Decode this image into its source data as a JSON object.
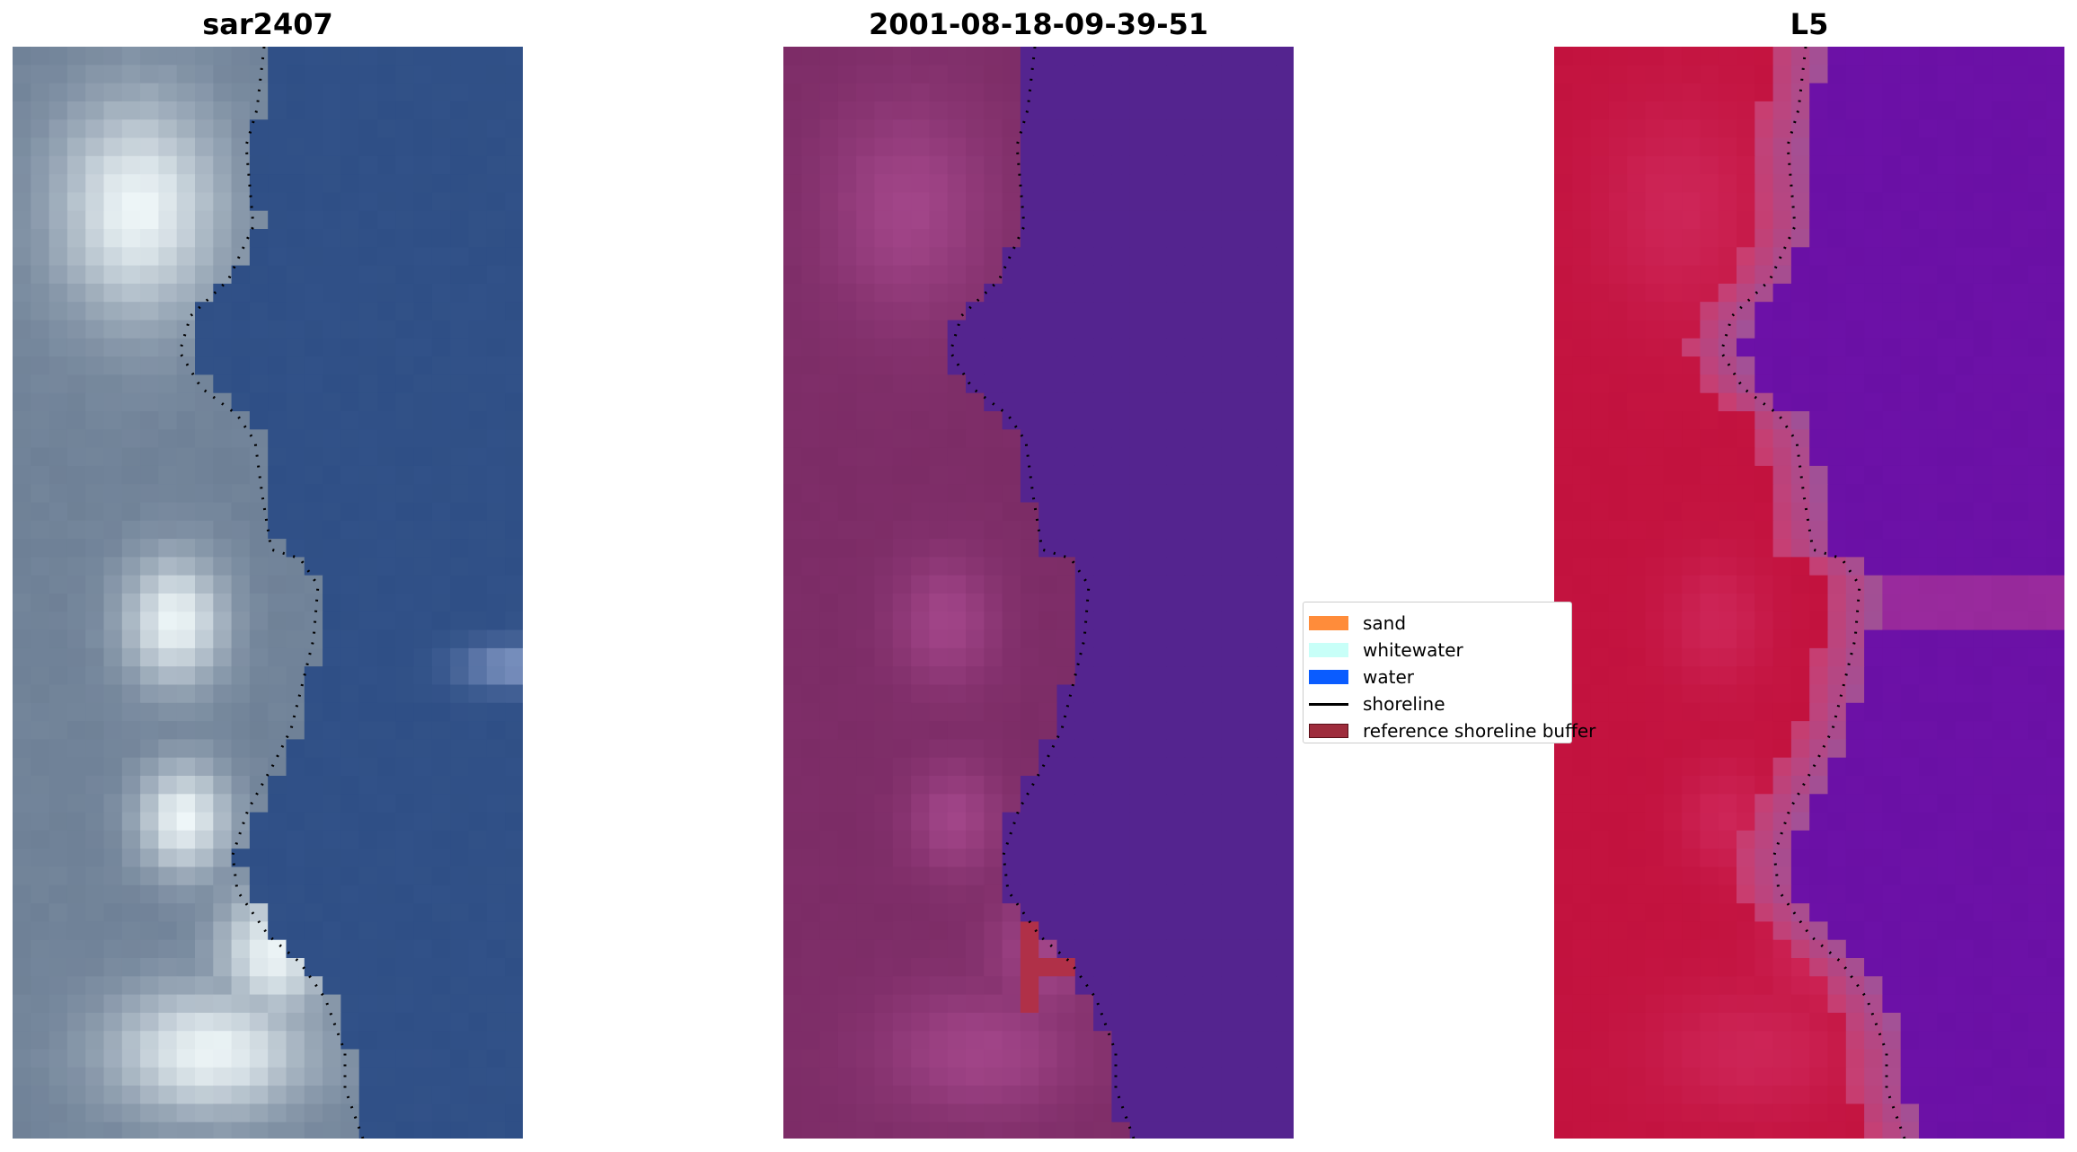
{
  "panels": [
    {
      "title": "sar2407",
      "style": "rgb"
    },
    {
      "title": "2001-08-18-09-39-51",
      "style": "classified"
    },
    {
      "title": "L5",
      "style": "index"
    }
  ],
  "legend": {
    "items": [
      {
        "label": "sand",
        "kind": "patch",
        "color": "#ff8c3a"
      },
      {
        "label": "whitewater",
        "kind": "patch",
        "color": "#c8fff8"
      },
      {
        "label": "water",
        "kind": "patch",
        "color": "#0a5cff"
      },
      {
        "label": "shoreline",
        "kind": "line",
        "color": "#000000"
      },
      {
        "label": "reference shoreline buffer",
        "kind": "patch",
        "color": "#9e2c3c"
      }
    ]
  },
  "colors": {
    "rgb_water": "#2f4f86",
    "rgb_land": "#6f829b",
    "classified_water": "#54248f",
    "classified_land": "#7c2c66",
    "index_water": "#6b10a4",
    "index_land": "#c2123f",
    "shoreline": "#000000"
  }
}
